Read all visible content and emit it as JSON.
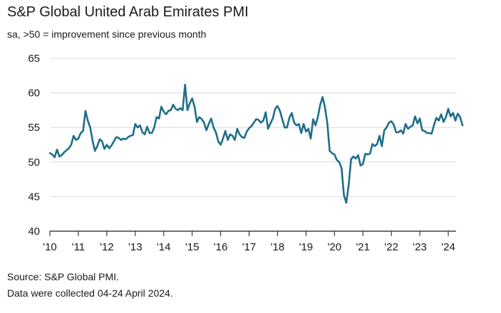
{
  "chart_data": {
    "type": "line",
    "title": "S&P Global United Arab Emirates PMI",
    "subtitle": "sa, >50 = improvement since previous month",
    "xlabel": "",
    "ylabel": "",
    "ylim": [
      40,
      65
    ],
    "yticks": [
      40,
      45,
      50,
      55,
      60,
      65
    ],
    "xticks": [
      "'10",
      "'11",
      "'12",
      "'13",
      "'14",
      "'15",
      "'16",
      "'17",
      "'18",
      "'19",
      "'20",
      "'21",
      "'22",
      "'23",
      "'24"
    ],
    "x_start": 2010.0,
    "x_step": 0.0833333,
    "grid": "horizontal",
    "series": [
      {
        "name": "United Arab Emirates PMI",
        "color": "#1f6e88",
        "values": [
          51.3,
          51.1,
          50.7,
          51.8,
          50.8,
          51.0,
          51.4,
          51.7,
          52.0,
          52.5,
          53.8,
          53.2,
          53.4,
          54.2,
          54.5,
          57.4,
          56.0,
          55.0,
          53.1,
          51.6,
          52.3,
          53.3,
          53.0,
          51.9,
          52.5,
          52.0,
          52.4,
          53.0,
          53.6,
          53.5,
          53.2,
          53.4,
          53.3,
          53.6,
          53.8,
          53.9,
          55.5,
          55.0,
          55.3,
          54.3,
          54.0,
          55.1,
          54.2,
          54.2,
          55.0,
          56.5,
          56.3,
          58.0,
          57.3,
          56.9,
          57.4,
          57.5,
          58.3,
          57.7,
          57.5,
          57.8,
          57.5,
          61.2,
          57.5,
          58.5,
          59.2,
          58.0,
          55.8,
          56.5,
          56.2,
          55.7,
          54.6,
          55.5,
          56.3,
          55.0,
          54.3,
          53.0,
          52.5,
          53.4,
          54.5,
          53.2,
          54.0,
          53.8,
          53.2,
          54.8,
          54.0,
          53.6,
          53.5,
          54.4,
          54.9,
          55.2,
          55.7,
          56.2,
          56.1,
          55.7,
          56.0,
          57.2,
          54.8,
          55.6,
          56.3,
          57.7,
          58.1,
          57.4,
          56.2,
          55.0,
          55.0,
          56.4,
          57.1,
          55.7,
          55.3,
          55.5,
          54.2,
          55.5,
          54.4,
          54.8,
          53.4,
          56.2,
          55.3,
          56.5,
          58.3,
          59.4,
          57.9,
          55.6,
          51.6,
          51.3,
          51.1,
          50.3,
          50.0,
          49.1,
          45.2,
          44.1,
          46.7,
          50.4,
          50.8,
          50.5,
          51.0,
          49.5,
          49.7,
          51.2,
          51.1,
          51.2,
          52.6,
          52.3,
          52.6,
          53.8,
          52.3,
          54.6,
          55.0,
          55.7,
          55.9,
          55.4,
          54.3,
          54.3,
          54.6,
          54.1,
          55.5,
          54.8,
          55.1,
          55.3,
          56.6,
          55.6,
          56.3,
          54.6,
          54.5,
          54.2,
          54.2,
          54.1,
          55.4,
          56.4,
          56.0,
          56.9,
          55.8,
          56.5,
          57.7,
          56.6,
          57.1,
          56.0,
          57.0,
          56.5,
          55.3
        ]
      }
    ]
  },
  "footer": {
    "source": "Source: S&P Global PMI.",
    "note": "Data were collected 04-24 April 2024."
  }
}
